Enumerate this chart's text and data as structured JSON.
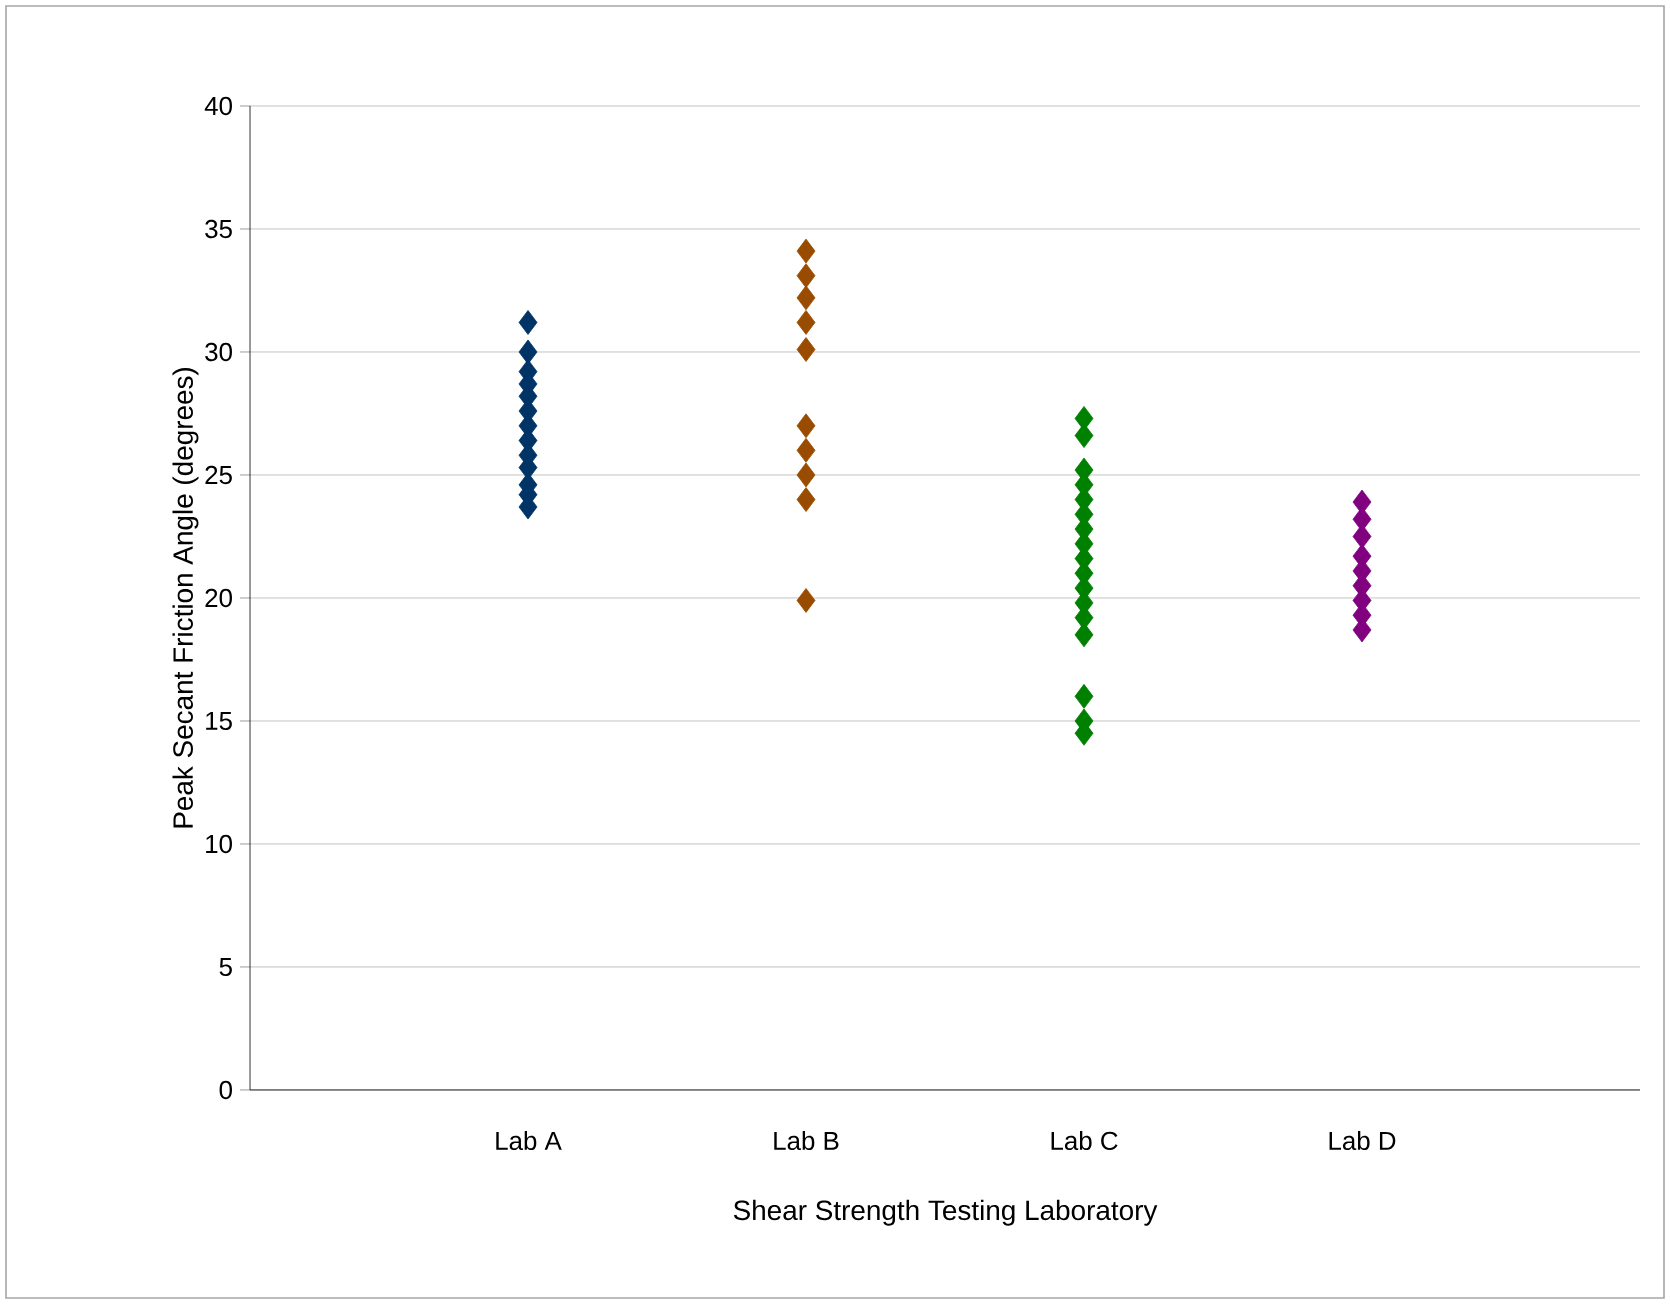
{
  "chart_data": {
    "type": "scatter",
    "xlabel": "Shear Strength Testing Laboratory",
    "ylabel": "Peak Secant Friction Angle (degrees)",
    "categories": [
      "Lab A",
      "Lab B",
      "Lab C",
      "Lab D"
    ],
    "ylim": [
      0,
      40
    ],
    "yticks": [
      0,
      5,
      10,
      15,
      20,
      25,
      30,
      35,
      40
    ],
    "grid": "y",
    "marker": "diamond",
    "series": [
      {
        "color": "#003366",
        "x": [
          "Lab A",
          "Lab A",
          "Lab A",
          "Lab A",
          "Lab A",
          "Lab A",
          "Lab A",
          "Lab A",
          "Lab A",
          "Lab A",
          "Lab A",
          "Lab A",
          "Lab A"
        ],
        "values": [
          31.2,
          30.0,
          29.2,
          28.7,
          28.2,
          27.6,
          27.0,
          26.4,
          25.8,
          25.3,
          24.6,
          24.2,
          23.7
        ]
      },
      {
        "color": "#994c00",
        "x": [
          "Lab B",
          "Lab B",
          "Lab B",
          "Lab B",
          "Lab B",
          "Lab B",
          "Lab B",
          "Lab B",
          "Lab B",
          "Lab B"
        ],
        "values": [
          34.1,
          33.1,
          32.2,
          31.2,
          30.1,
          27.0,
          26.0,
          25.0,
          24.0,
          19.9
        ]
      },
      {
        "color": "#008000",
        "x": [
          "Lab C",
          "Lab C",
          "Lab C",
          "Lab C",
          "Lab C",
          "Lab C",
          "Lab C",
          "Lab C",
          "Lab C",
          "Lab C",
          "Lab C",
          "Lab C",
          "Lab C",
          "Lab C",
          "Lab C",
          "Lab C",
          "Lab C"
        ],
        "values": [
          27.3,
          26.6,
          25.2,
          24.6,
          24.0,
          23.4,
          22.8,
          22.2,
          21.6,
          21.0,
          20.4,
          19.8,
          19.2,
          18.5,
          16.0,
          15.0,
          14.5
        ]
      },
      {
        "color": "#800080",
        "x": [
          "Lab D",
          "Lab D",
          "Lab D",
          "Lab D",
          "Lab D",
          "Lab D",
          "Lab D",
          "Lab D",
          "Lab D"
        ],
        "values": [
          23.9,
          23.2,
          22.5,
          21.7,
          21.1,
          20.5,
          19.9,
          19.3,
          18.7
        ]
      }
    ]
  }
}
